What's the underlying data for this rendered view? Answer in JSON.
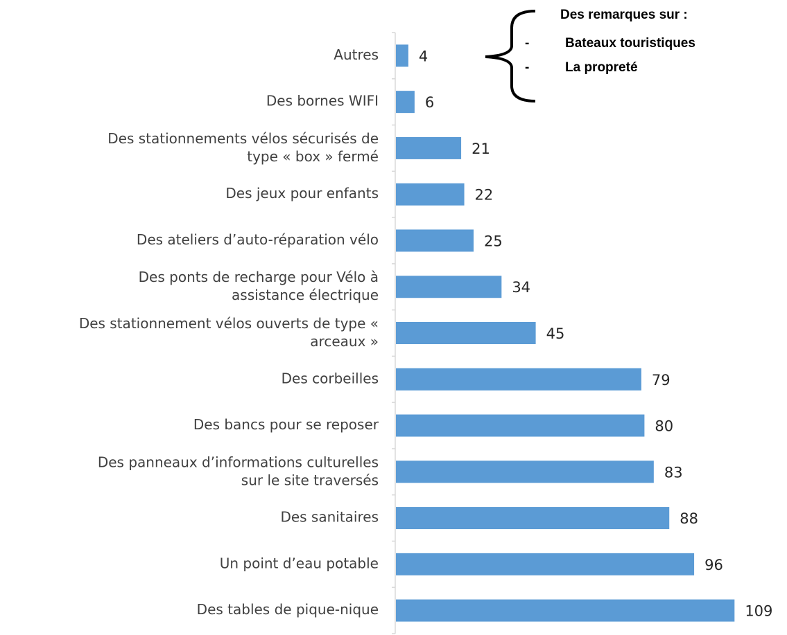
{
  "chart_data": {
    "type": "barh",
    "categories": [
      "Autres",
      "Des bornes WIFI",
      "Des stationnements vélos sécurisés de\ntype « box » fermé",
      "Des jeux pour enfants",
      "Des ateliers d’auto-réparation vélo",
      "Des ponts de recharge pour Vélo à\nassistance électrique",
      "Des stationnement vélos ouverts de type «\narceaux »",
      "Des corbeilles",
      "Des bancs pour se reposer",
      "Des panneaux d’informations culturelles\nsur le site traversés",
      "Des sanitaires",
      "Un point d’eau potable",
      "Des tables de pique-nique"
    ],
    "values": [
      4,
      6,
      21,
      22,
      25,
      34,
      45,
      79,
      80,
      83,
      88,
      96,
      109
    ],
    "color": "#5b9bd5",
    "xlim": [
      0,
      115
    ],
    "annotation": {
      "title": "Des remarques sur :",
      "bullet": "-",
      "items": [
        "Bateaux touristiques",
        "La propreté"
      ]
    }
  }
}
